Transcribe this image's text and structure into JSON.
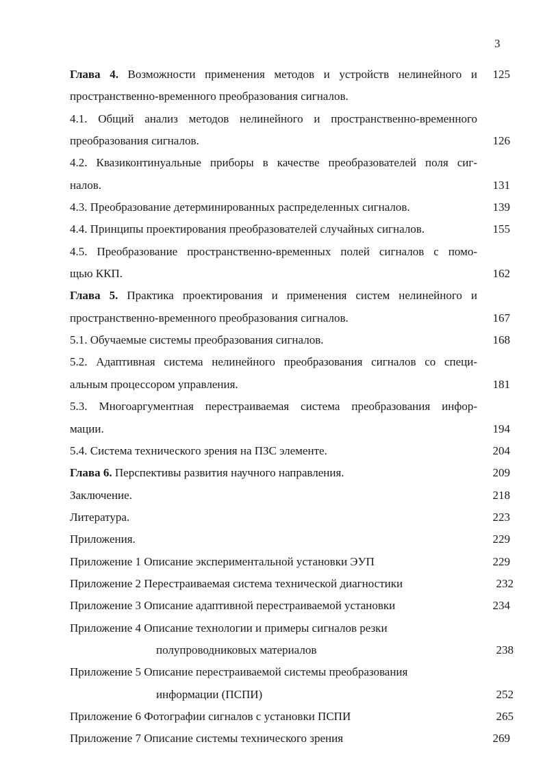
{
  "page_number": "3",
  "toc": [
    {
      "bold": "Глава 4.",
      "lines": [
        "Возможности применения методов и устройств нелинейного и",
        "пространственно-временного преобразования сигналов."
      ],
      "justify": [
        true,
        false
      ],
      "page": "125",
      "page_line": 0
    },
    {
      "lines": [
        "4.1. Общий анализ методов нелинейного и пространственно-временного",
        "преобразования сигналов."
      ],
      "justify": [
        true,
        false
      ],
      "page": "126",
      "page_line": 1
    },
    {
      "lines": [
        "4.2. Квазиконтинуальные приборы в качестве преобразователей поля сиг-",
        "налов."
      ],
      "justify": [
        true,
        false
      ],
      "page": "131",
      "page_line": 1
    },
    {
      "lines": [
        "4.3. Преобразование детерминированных распределенных сигналов."
      ],
      "page": "139",
      "page_line": 0
    },
    {
      "lines": [
        "4.4. Принципы проектирования преобразователей случайных сигналов."
      ],
      "page": "155",
      "page_line": 0
    },
    {
      "lines": [
        "4.5. Преобразование пространственно-временных полей сигналов с помо-",
        "щью ККП."
      ],
      "justify": [
        true,
        false
      ],
      "page": "162",
      "page_line": 1
    },
    {
      "bold": "Глава 5.",
      "lines": [
        "Практика проектирования и применения систем нелинейного и",
        "пространственно-временного преобразования сигналов."
      ],
      "justify": [
        true,
        false
      ],
      "page": "167",
      "page_line": 1
    },
    {
      "lines": [
        "5.1. Обучаемые системы преобразования сигналов."
      ],
      "page": "168",
      "page_line": 0
    },
    {
      "lines": [
        "5.2. Адаптивная система нелинейного преобразования сигналов со специ-",
        "альным процессором управления."
      ],
      "justify": [
        true,
        false
      ],
      "page": "181",
      "page_line": 1
    },
    {
      "lines": [
        "5.3. Многоаргументная перестраиваемая система преобразования инфор-",
        "мации."
      ],
      "justify": [
        true,
        false
      ],
      "page": "194",
      "page_line": 1
    },
    {
      "lines": [
        "5.4. Система технического зрения на ПЗС элементе."
      ],
      "page": "204",
      "page_line": 0
    },
    {
      "bold": "Глава 6.",
      "lines": [
        "Перспективы развития научного направления."
      ],
      "page": "209",
      "page_line": 0
    },
    {
      "lines": [
        "Заключение."
      ],
      "page": "218",
      "page_line": 0
    },
    {
      "lines": [
        "Литература."
      ],
      "page": "223",
      "page_line": 0
    },
    {
      "lines": [
        "Приложения."
      ],
      "page": "229",
      "page_line": 0
    },
    {
      "lines": [
        "Приложение 1 Описание экспериментальной установки  ЭУП"
      ],
      "page": "229",
      "page_line": 0
    },
    {
      "lines": [
        "Приложение 2  Перестраиваемая система технической диагностики"
      ],
      "page": "232",
      "page_line": 0,
      "shift": true
    },
    {
      "lines": [
        "Приложение 3  Описание адаптивной перестраиваемой установки"
      ],
      "page": "234",
      "page_line": 0
    },
    {
      "lines": [
        "Приложение  4  Описание технологии и примеры сигналов резки",
        "полупроводниковых материалов"
      ],
      "indent": [
        false,
        true
      ],
      "page": "238",
      "page_line": 1,
      "shift": true
    },
    {
      "lines": [
        "Приложение  5  Описание перестраиваемой системы преобразования",
        "информации (ПСПИ)"
      ],
      "indent": [
        false,
        true
      ],
      "page": "252",
      "page_line": 1,
      "shift": true
    },
    {
      "lines": [
        "Приложение  6  Фотографии сигналов с установки ПСПИ"
      ],
      "page": "265",
      "page_line": 0,
      "shift": true
    },
    {
      "lines": [
        "Приложение  7  Описание системы технического зрения"
      ],
      "page": "269",
      "page_line": 0
    }
  ]
}
